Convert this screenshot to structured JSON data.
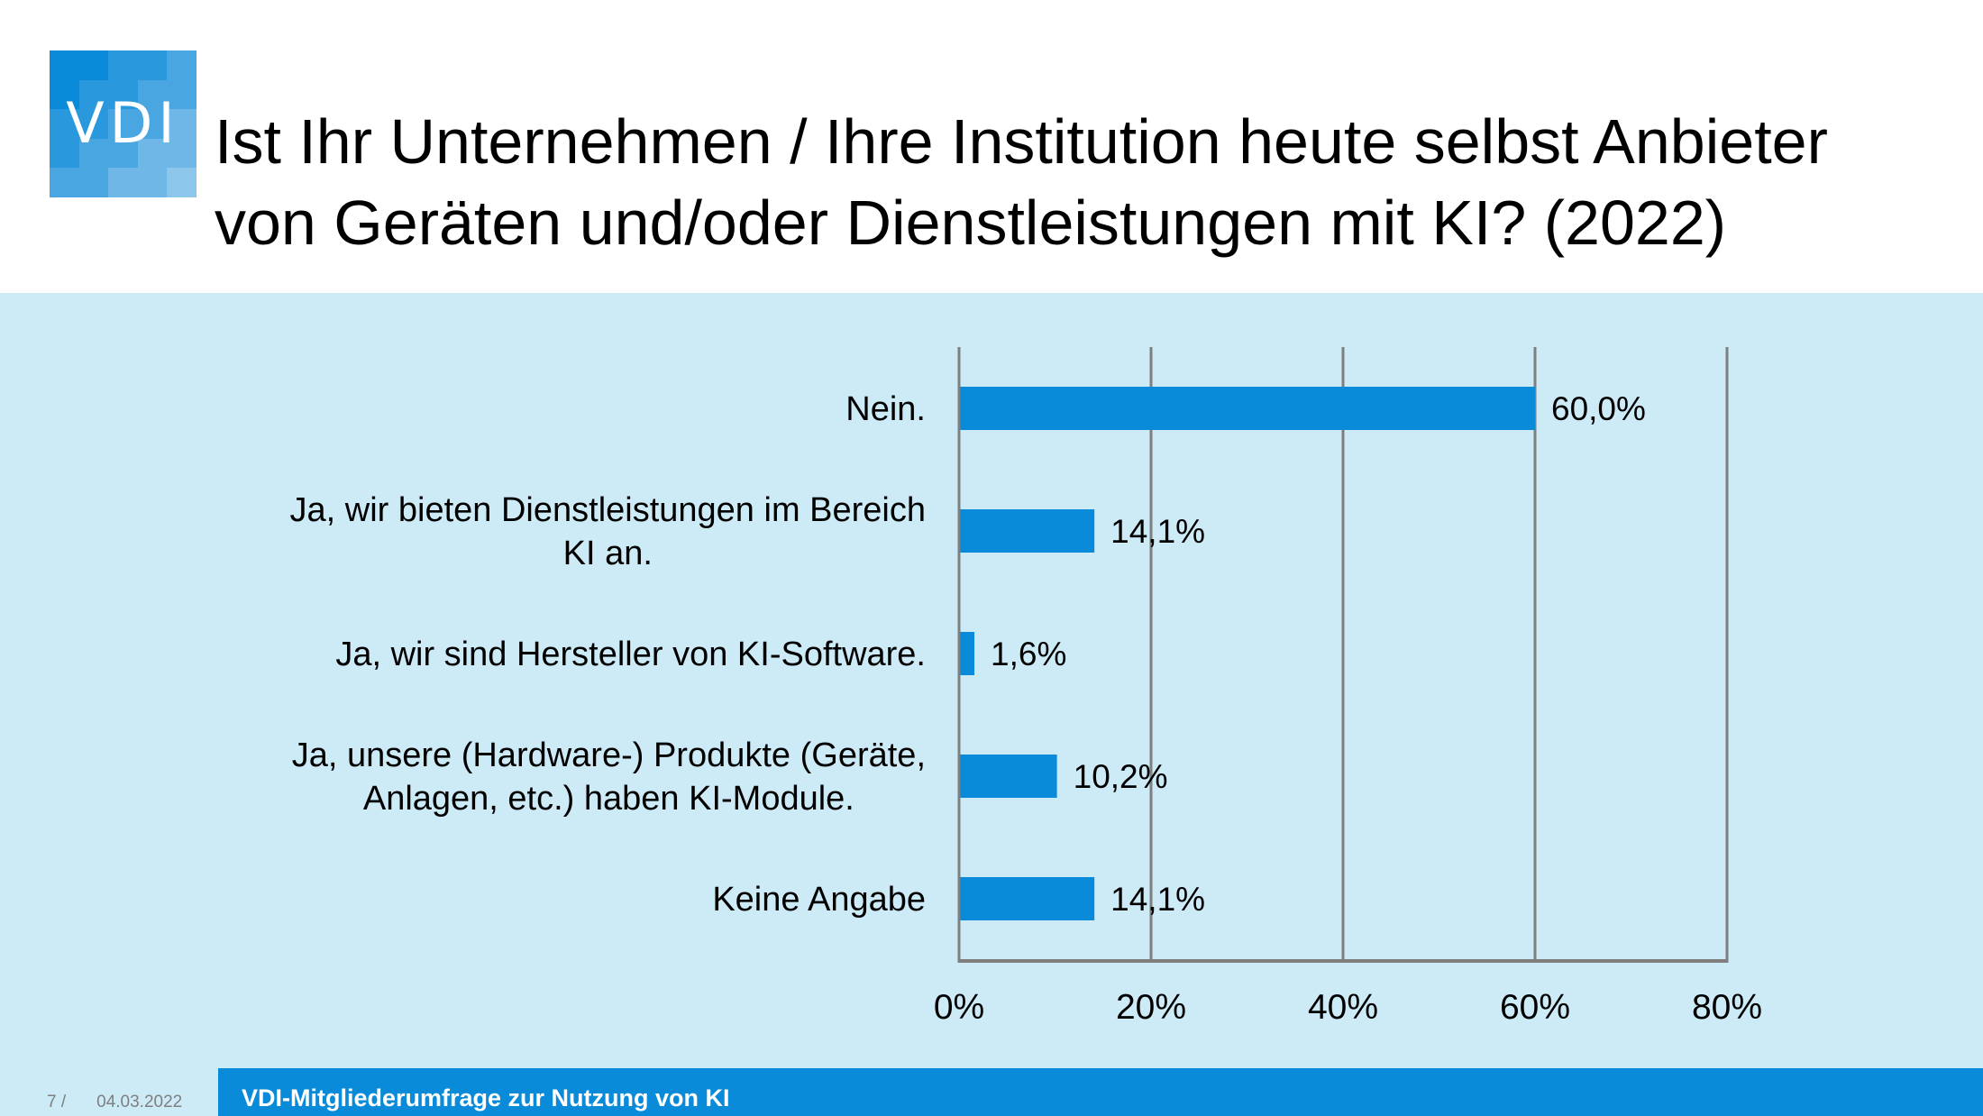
{
  "logo": {
    "text": "VDI",
    "colors": [
      "#0a8bd9",
      "#2a98dc",
      "#4aa6e0",
      "#6fb7e6",
      "#8cc6eb"
    ]
  },
  "header": {
    "title_lines": [
      "Ist Ihr Unternehmen / Ihre Institution heute selbst Anbieter",
      "von Geräten und/oder Dienstleistungen mit KI? (2022)"
    ]
  },
  "footer": {
    "page": "7 /",
    "date": "04.03.2022",
    "title": "VDI-Mitgliederumfrage zur Nutzung von KI"
  },
  "colors": {
    "bar": "#0a8bd9",
    "plot_bg": "#cdeaf7",
    "grid": "#7f7f7f",
    "footer": "#0a8bd9"
  },
  "chart_data": {
    "type": "bar",
    "orientation": "horizontal",
    "title": "Ist Ihr Unternehmen / Ihre Institution heute selbst Anbieter von Geräten und/oder Dienstleistungen mit KI? (2022)",
    "categories": [
      "Nein.",
      "Ja, wir bieten Dienstleistungen im Bereich KI an.",
      "Ja, wir sind Hersteller von KI-Software.",
      "Ja, unsere (Hardware-) Produkte (Geräte, Anlagen, etc.) haben KI-Module.",
      "Keine Angabe"
    ],
    "category_lines": [
      [
        "Nein."
      ],
      [
        "Ja, wir bieten Dienstleistungen im Bereich",
        "KI an."
      ],
      [
        "Ja, wir sind Hersteller von KI-Software."
      ],
      [
        "Ja, unsere (Hardware-) Produkte (Geräte,",
        "Anlagen, etc.) haben KI-Module."
      ],
      [
        "Keine Angabe"
      ]
    ],
    "values": [
      60.0,
      14.1,
      1.6,
      10.2,
      14.1
    ],
    "data_labels": [
      "60,0%",
      "14,1%",
      "1,6%",
      "10,2%",
      "14,1%"
    ],
    "xlabel": "",
    "ylabel": "",
    "xlim": [
      0,
      80
    ],
    "xticks": [
      0,
      20,
      40,
      60,
      80
    ],
    "xtick_labels": [
      "0%",
      "20%",
      "40%",
      "60%",
      "80%"
    ],
    "grid": true,
    "legend": "none"
  }
}
